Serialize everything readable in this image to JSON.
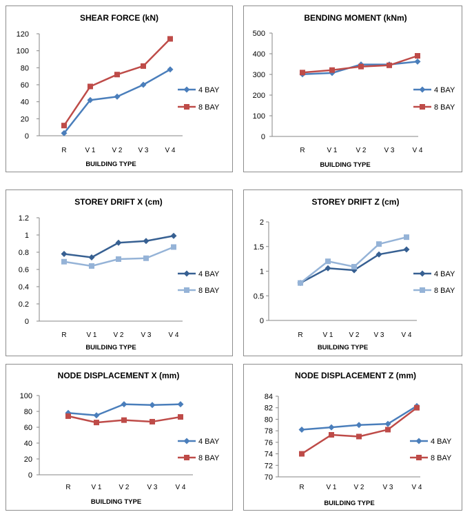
{
  "chart_data": [
    {
      "type": "line",
      "title": "SHEAR FORCE     (kN)",
      "xlabel": "BUILDING TYPE",
      "ylabel": "",
      "categories": [
        "R",
        "V 1",
        "V 2",
        "V 3",
        "V 4"
      ],
      "ylim": [
        0,
        120
      ],
      "yticks": [
        0,
        20,
        40,
        60,
        80,
        100,
        120
      ],
      "grid": false,
      "legend_position": "right",
      "series": [
        {
          "name": "4 BAY",
          "values": [
            3,
            42,
            46,
            60,
            78
          ],
          "color": "#4a7ebb",
          "marker": "diamond"
        },
        {
          "name": "8 BAY",
          "values": [
            12,
            58,
            72,
            82,
            114
          ],
          "color": "#be4b48",
          "marker": "square"
        }
      ]
    },
    {
      "type": "line",
      "title": "BENDING MOMENT  (kNm)",
      "xlabel": "BUILDING TYPE",
      "ylabel": "",
      "categories": [
        "R",
        "V 1",
        "V 2",
        "V 3",
        "V 4"
      ],
      "ylim": [
        0,
        500
      ],
      "yticks": [
        0,
        100,
        200,
        300,
        400,
        500
      ],
      "grid": false,
      "legend_position": "right",
      "series": [
        {
          "name": "4 BAY",
          "values": [
            301,
            307,
            348,
            348,
            362
          ],
          "color": "#4a7ebb",
          "marker": "diamond"
        },
        {
          "name": "8 BAY",
          "values": [
            309,
            321,
            338,
            344,
            390
          ],
          "color": "#be4b48",
          "marker": "square"
        }
      ]
    },
    {
      "type": "line",
      "title": "STOREY DRIFT  X  (cm)",
      "xlabel": "BUILDING TYPE",
      "ylabel": "",
      "categories": [
        "R",
        "V 1",
        "V 2",
        "V 3",
        "V 4"
      ],
      "ylim": [
        0,
        1.2
      ],
      "yticks": [
        0,
        0.2,
        0.4,
        0.6,
        0.8,
        1,
        1.2
      ],
      "grid": false,
      "legend_position": "right",
      "series": [
        {
          "name": "4 BAY",
          "values": [
            0.78,
            0.74,
            0.91,
            0.93,
            0.99
          ],
          "color": "#376092",
          "marker": "diamond"
        },
        {
          "name": "8 BAY",
          "values": [
            0.69,
            0.64,
            0.72,
            0.73,
            0.86
          ],
          "color": "#95b3d7",
          "marker": "square"
        }
      ]
    },
    {
      "type": "line",
      "title": "STOREY DRIFT  Z  (cm)",
      "xlabel": "BUILDING TYPE",
      "ylabel": "",
      "categories": [
        "R",
        "V 1",
        "V 2",
        "V 3",
        "V 4"
      ],
      "ylim": [
        0,
        2
      ],
      "yticks": [
        0,
        0.5,
        1,
        1.5,
        2
      ],
      "grid": false,
      "legend_position": "right",
      "series": [
        {
          "name": "4 BAY",
          "values": [
            0.76,
            1.06,
            1.02,
            1.34,
            1.44
          ],
          "color": "#376092",
          "marker": "diamond"
        },
        {
          "name": "8 BAY",
          "values": [
            0.76,
            1.2,
            1.09,
            1.55,
            1.69
          ],
          "color": "#95b3d7",
          "marker": "square"
        }
      ]
    },
    {
      "type": "line",
      "title": "NODE DISPLACEMENT  X  (mm)",
      "xlabel": "BUILDING TYPE",
      "ylabel": "",
      "categories": [
        "R",
        "V 1",
        "V 2",
        "V 3",
        "V 4"
      ],
      "ylim": [
        0,
        100
      ],
      "yticks": [
        0,
        20,
        40,
        60,
        80,
        100
      ],
      "grid": false,
      "legend_position": "right",
      "series": [
        {
          "name": "4 BAY",
          "values": [
            78,
            75,
            89,
            88,
            89
          ],
          "color": "#4a7ebb",
          "marker": "diamond"
        },
        {
          "name": "8 BAY",
          "values": [
            74,
            66,
            69,
            67,
            73
          ],
          "color": "#be4b48",
          "marker": "square"
        }
      ]
    },
    {
      "type": "line",
      "title": "NODE DISPLACEMENT  Z  (mm)",
      "xlabel": "BUILDING TYPE",
      "ylabel": "",
      "categories": [
        "R",
        "V 1",
        "V 2",
        "V 3",
        "V 4"
      ],
      "ylim": [
        70,
        84
      ],
      "yticks": [
        70,
        72,
        74,
        76,
        78,
        80,
        82,
        84
      ],
      "grid": false,
      "legend_position": "right",
      "series": [
        {
          "name": "4 BAY",
          "values": [
            78.2,
            78.6,
            79,
            79.2,
            82.3
          ],
          "color": "#4a7ebb",
          "marker": "diamond"
        },
        {
          "name": "8 BAY",
          "values": [
            74,
            77.3,
            77,
            78.2,
            82
          ],
          "color": "#be4b48",
          "marker": "square"
        }
      ]
    }
  ]
}
